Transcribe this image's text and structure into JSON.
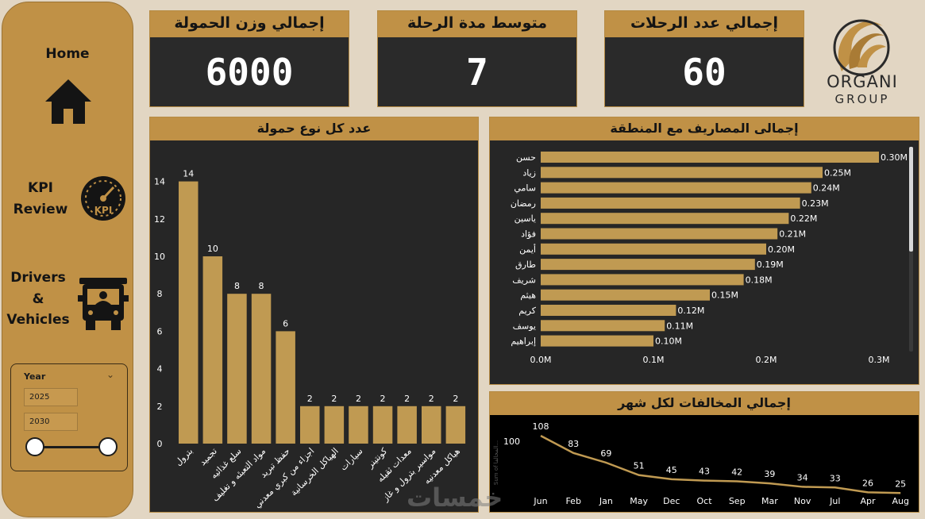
{
  "nav": {
    "home": "Home",
    "kpi_line1": "KPI",
    "kpi_line2": "Review",
    "kpi_icon_text": "KPI",
    "drivers_line1": "Drivers",
    "drivers_line2": "&",
    "drivers_line3": "Vehicles"
  },
  "year_filter": {
    "title": "Year",
    "from": "2025",
    "to": "2030",
    "range_min": 2025,
    "range_max": 2030
  },
  "kpis": [
    {
      "label": "إجمالي وزن الحمولة",
      "value": "6000"
    },
    {
      "label": "متوسط مدة الرحلة",
      "value": "7"
    },
    {
      "label": "إجمالي عدد الرحلات",
      "value": "60"
    }
  ],
  "logo": {
    "title": "ORGANI",
    "subtitle": "GROUP"
  },
  "colors": {
    "gold": "#c09146",
    "bar": "#c09a52",
    "panel": "#262626",
    "background": "#e2d6c3"
  },
  "chart_data": [
    {
      "type": "bar",
      "title": "عدد كل نوع حمولة",
      "categories": [
        "بترول",
        "تجميد",
        "سلع غذائيه",
        "مواد التعبئه و تغليف",
        "حفظ تبريد",
        "اجزاء من كبري معدني",
        "الهياكل الخرسانية",
        "سيارات",
        "كونتينر",
        "معدات ثقيله",
        "مواسير بترول و غاز",
        "هياكل معدنيه"
      ],
      "values": [
        14,
        10,
        8,
        8,
        6,
        2,
        2,
        2,
        2,
        2,
        2,
        2
      ],
      "y_ticks": [
        "0",
        "2",
        "4",
        "6",
        "8",
        "10",
        "12",
        "14"
      ],
      "ylim": [
        0,
        15
      ],
      "data_labels": true
    },
    {
      "type": "bar",
      "orientation": "horizontal",
      "title": "إجمالى المصاريف مع المنطقة",
      "categories": [
        "حسن",
        "زياد",
        "سامي",
        "رمضان",
        "ياسين",
        "فؤاد",
        "أيمن",
        "طارق",
        "شريف",
        "هيثم",
        "كريم",
        "يوسف",
        "إبراهيم"
      ],
      "values": [
        0.3,
        0.25,
        0.24,
        0.23,
        0.22,
        0.21,
        0.2,
        0.19,
        0.18,
        0.15,
        0.12,
        0.11,
        0.1
      ],
      "value_labels": [
        "0.30M",
        "0.25M",
        "0.24M",
        "0.23M",
        "0.22M",
        "0.21M",
        "0.20M",
        "0.19M",
        "0.18M",
        "0.15M",
        "0.12M",
        "0.11M",
        "0.10M"
      ],
      "x_ticks": [
        "0.0M",
        "0.1M",
        "0.2M",
        "0.3M"
      ],
      "xlim": [
        0,
        0.3
      ]
    },
    {
      "type": "line",
      "title": "إجمالي المخالفات لكل شهر",
      "ylabel": "Sum of المخالفا...",
      "categories": [
        "Jun",
        "Feb",
        "Jan",
        "May",
        "Dec",
        "Oct",
        "Sep",
        "Mar",
        "Nov",
        "Jul",
        "Apr",
        "Aug"
      ],
      "values": [
        108,
        83,
        69,
        51,
        45,
        43,
        42,
        39,
        34,
        33,
        26,
        25
      ],
      "y_ticks": [
        "100"
      ],
      "ylim": [
        0,
        115
      ],
      "data_labels": true
    }
  ],
  "watermark": "خمسات"
}
